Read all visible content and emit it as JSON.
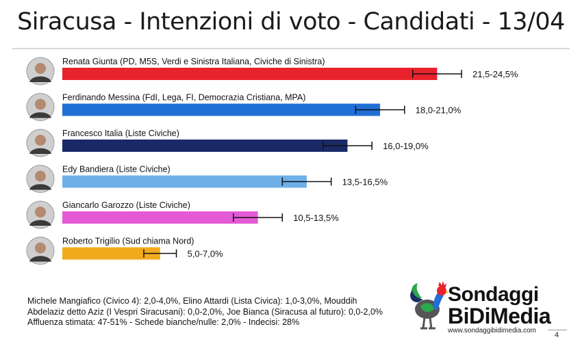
{
  "chart_data": {
    "type": "bar",
    "title": "Siracusa - Intenzioni di voto - Candidati - 13/04",
    "orientation": "horizontal",
    "xlim": [
      0,
      30
    ],
    "series": [
      {
        "label": "Renata Giunta (PD, M5S, Verdi e Sinistra Italiana, Civiche di Sinistra)",
        "value": 23.0,
        "low": 21.5,
        "high": 24.5,
        "range_label": "21,5-24,5%",
        "color": "#e8232d",
        "avatar": "woman-portrait-icon"
      },
      {
        "label": "Ferdinando Messina (FdI, Lega, FI, Democrazia Cristiana, MPA)",
        "value": 19.5,
        "low": 18.0,
        "high": 21.0,
        "range_label": "18,0-21,0%",
        "color": "#1f6fd6",
        "avatar": "man-portrait-icon"
      },
      {
        "label": "Francesco Italia (Liste Civiche)",
        "value": 17.5,
        "low": 16.0,
        "high": 19.0,
        "range_label": "16,0-19,0%",
        "color": "#1a2a66",
        "avatar": "man-portrait-icon"
      },
      {
        "label": "Edy Bandiera (Liste Civiche)",
        "value": 15.0,
        "low": 13.5,
        "high": 16.5,
        "range_label": "13,5-16,5%",
        "color": "#6fb0e8",
        "avatar": "man-portrait-icon"
      },
      {
        "label": "Giancarlo Garozzo (Liste Civiche)",
        "value": 12.0,
        "low": 10.5,
        "high": 13.5,
        "range_label": "10,5-13,5%",
        "color": "#e45ad6",
        "avatar": "man-portrait-icon"
      },
      {
        "label": "Roberto Trigilio (Sud chiama Nord)",
        "value": 6.0,
        "low": 5.0,
        "high": 7.0,
        "range_label": "5,0-7,0%",
        "color": "#f2aa1d",
        "avatar": "man-portrait-icon"
      }
    ]
  },
  "footnotes": [
    "Michele Mangiafico (Civico 4): 2,0-4,0%, Elino Attardi (Lista Civica): 1,0-3,0%, Mouddih",
    "Abdelaziz detto Aziz (I Vespri Siracusani): 0,0-2,0%, Joe Bianca (Siracusa al futuro): 0,0-2,0%",
    "Affluenza stimata: 47-51% - Schede bianche/nulle: 2,0% - Indecisi: 28%"
  ],
  "brand": {
    "line1": "Sondaggi",
    "line2": "BiDiMedia",
    "url": "www.sondaggibidimedia.com",
    "logo_icon": "rooster-logo-icon",
    "logo_colors": {
      "head": "#e8232d",
      "neck": "#1f6fd6",
      "wing": "#2aa84a",
      "body": "#555555"
    }
  },
  "page_number": "4"
}
